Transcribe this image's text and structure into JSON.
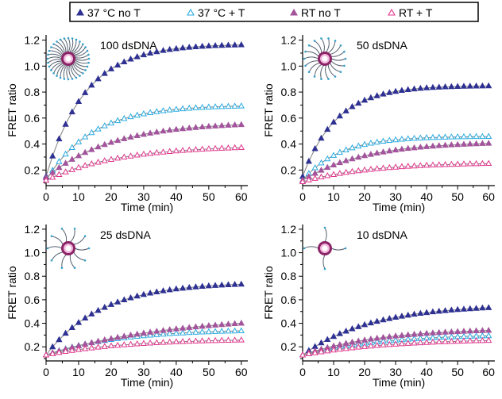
{
  "chart_data": {
    "type": "scatter",
    "xlabel": "Time (min)",
    "ylabel": "FRET ratio",
    "xlim": [
      0,
      62
    ],
    "ylim": [
      0.08,
      1.24
    ],
    "xticks": [
      0,
      10,
      20,
      30,
      40,
      50,
      60
    ],
    "yticks": [
      0.2,
      0.4,
      0.6,
      0.8,
      1.0,
      1.2
    ],
    "ytick_labels": [
      "0.2",
      "0.4",
      "0.6",
      "0.8",
      "1.0",
      "1.2"
    ],
    "legend": {
      "placement": "top",
      "entries": [
        {
          "marker": "▲",
          "label": "37 °C no T",
          "color": "#2e3192",
          "filled": true
        },
        {
          "marker": "△",
          "label": "37 °C + T",
          "color": "#29abe2",
          "filled": false
        },
        {
          "marker": "▲",
          "label": "RT no T",
          "color": "#a3549c",
          "filled": true
        },
        {
          "marker": "△",
          "label": "RT + T",
          "color": "#e0368c",
          "filled": false
        }
      ]
    },
    "panels": [
      {
        "title": "100 dsDNA",
        "fits": [
          {
            "series": "37 °C no T",
            "y0": 0.15,
            "ymax": 1.17,
            "tau": 12
          },
          {
            "series": "37 °C + T",
            "y0": 0.12,
            "ymax": 0.7,
            "tau": 14
          },
          {
            "series": "RT no T",
            "y0": 0.14,
            "ymax": 0.57,
            "tau": 20
          },
          {
            "series": "RT + T",
            "y0": 0.12,
            "ymax": 0.39,
            "tau": 22
          }
        ]
      },
      {
        "title": "50 dsDNA",
        "fits": [
          {
            "series": "37 °C no T",
            "y0": 0.15,
            "ymax": 0.85,
            "tau": 11
          },
          {
            "series": "37 °C + T",
            "y0": 0.12,
            "ymax": 0.46,
            "tau": 12
          },
          {
            "series": "RT no T",
            "y0": 0.12,
            "ymax": 0.42,
            "tau": 20
          },
          {
            "series": "RT + T",
            "y0": 0.11,
            "ymax": 0.26,
            "tau": 22
          }
        ]
      },
      {
        "title": "25 dsDNA",
        "fits": [
          {
            "series": "37 °C no T",
            "y0": 0.13,
            "ymax": 0.75,
            "tau": 17
          },
          {
            "series": "37 °C + T",
            "y0": 0.13,
            "ymax": 0.35,
            "tau": 22
          },
          {
            "series": "RT no T",
            "y0": 0.13,
            "ymax": 0.47,
            "tau": 38
          },
          {
            "series": "RT + T",
            "y0": 0.13,
            "ymax": 0.27,
            "tau": 25
          }
        ]
      },
      {
        "title": "10 dsDNA",
        "fits": [
          {
            "series": "37 °C no T",
            "y0": 0.13,
            "ymax": 0.56,
            "tau": 22
          },
          {
            "series": "37 °C + T",
            "y0": 0.13,
            "ymax": 0.31,
            "tau": 25
          },
          {
            "series": "RT no T",
            "y0": 0.13,
            "ymax": 0.36,
            "tau": 25
          },
          {
            "series": "RT + T",
            "y0": 0.13,
            "ymax": 0.27,
            "tau": 28
          }
        ]
      }
    ]
  }
}
